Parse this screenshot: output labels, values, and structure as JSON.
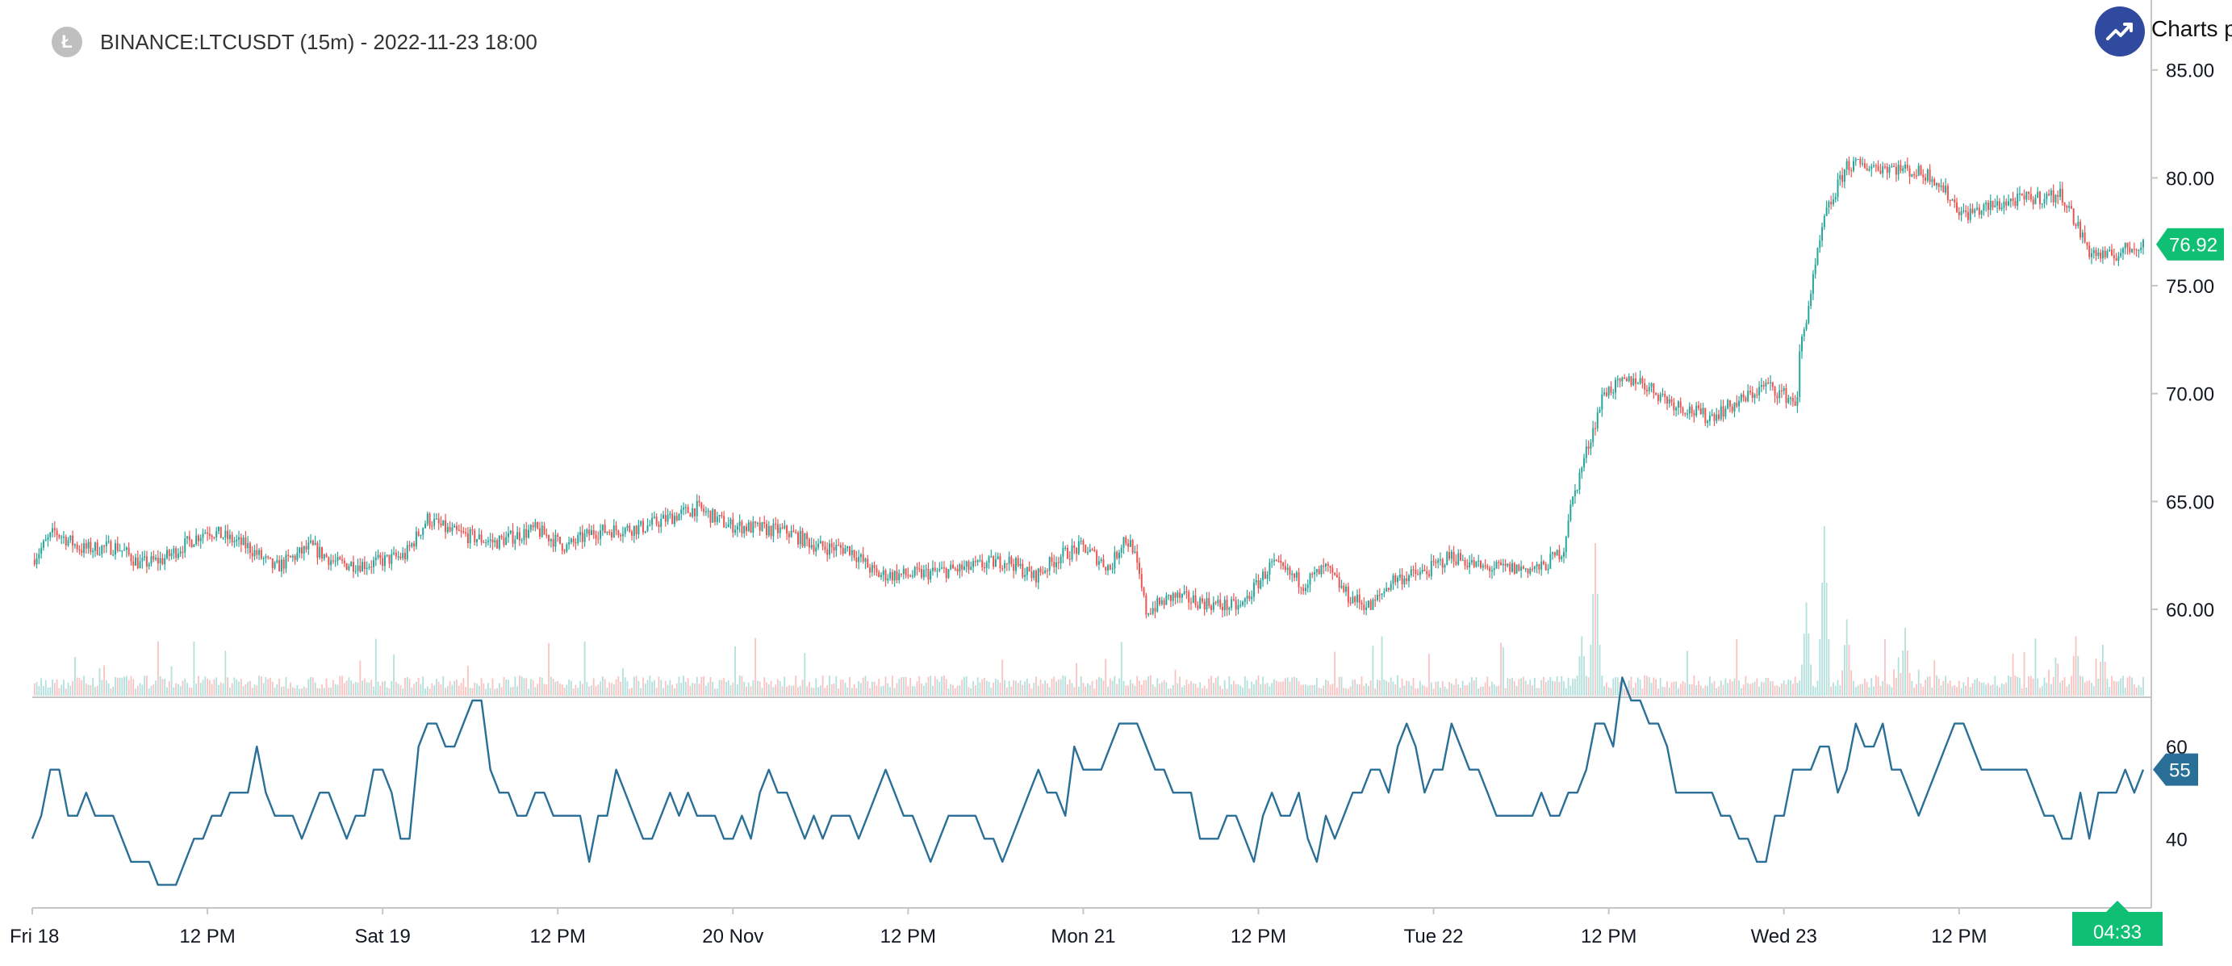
{
  "legend": {
    "symbol": "BINANCE:LTCUSDT (15m) - 2022-11-23 18:00",
    "coin_icon": "litecoin-icon"
  },
  "logo": {
    "text": "Charts p",
    "icon": "trend-up-icon"
  },
  "colors": {
    "up": "#26a69a",
    "up_badge": "#0fbf73",
    "down": "#ef5350",
    "oscillator": "#2a6f97",
    "axis": "#787b86",
    "divider": "#c5c5c5"
  },
  "chart_data": [
    {
      "type": "candlestick",
      "title": "BINANCE:LTCUSDT (15m) - 2022-11-23 18:00",
      "x_ticks": [
        "Fri 18",
        "12 PM",
        "Sat 19",
        "12 PM",
        "20 Nov",
        "12 PM",
        "Mon 21",
        "12 PM",
        "Tue 22",
        "12 PM",
        "Wed 23",
        "12 PM"
      ],
      "y_ticks": [
        "85.00",
        "80.00",
        "75.00",
        "70.00",
        "65.00",
        "60.00"
      ],
      "ylim": [
        56.0,
        86.0
      ],
      "last_price": "76.92",
      "time_to_close": "04:33",
      "close_path": [
        [
          0,
          62.3
        ],
        [
          10,
          63.6
        ],
        [
          22,
          62.8
        ],
        [
          38,
          62.9
        ],
        [
          48,
          62.1
        ],
        [
          58,
          62.3
        ],
        [
          78,
          63.7
        ],
        [
          96,
          62.9
        ],
        [
          108,
          61.9
        ],
        [
          124,
          62.9
        ],
        [
          136,
          62.1
        ],
        [
          150,
          62.1
        ],
        [
          166,
          62.5
        ],
        [
          176,
          64.2
        ],
        [
          186,
          63.6
        ],
        [
          206,
          63.1
        ],
        [
          224,
          63.7
        ],
        [
          238,
          62.9
        ],
        [
          250,
          63.6
        ],
        [
          272,
          63.8
        ],
        [
          296,
          64.7
        ],
        [
          310,
          63.9
        ],
        [
          336,
          63.6
        ],
        [
          350,
          62.9
        ],
        [
          364,
          62.8
        ],
        [
          376,
          61.6
        ],
        [
          392,
          61.6
        ],
        [
          416,
          61.9
        ],
        [
          434,
          62.3
        ],
        [
          446,
          61.5
        ],
        [
          458,
          62.5
        ],
        [
          468,
          62.9
        ],
        [
          480,
          61.9
        ],
        [
          486,
          63.3
        ],
        [
          490,
          62.9
        ],
        [
          496,
          59.9
        ],
        [
          508,
          60.6
        ],
        [
          528,
          60.2
        ],
        [
          538,
          60.1
        ],
        [
          552,
          62.1
        ],
        [
          566,
          61.2
        ],
        [
          576,
          61.9
        ],
        [
          586,
          60.6
        ],
        [
          596,
          60.1
        ],
        [
          606,
          61.4
        ],
        [
          620,
          61.7
        ],
        [
          632,
          62.5
        ],
        [
          646,
          61.9
        ],
        [
          672,
          61.9
        ],
        [
          682,
          62.8
        ],
        [
          684,
          64.3
        ],
        [
          690,
          66.6
        ],
        [
          700,
          70.1
        ],
        [
          714,
          70.7
        ],
        [
          730,
          69.6
        ],
        [
          746,
          68.9
        ],
        [
          760,
          69.6
        ],
        [
          772,
          70.4
        ],
        [
          786,
          69.6
        ],
        [
          786,
          71.3
        ],
        [
          798,
          78.1
        ],
        [
          808,
          80.6
        ],
        [
          828,
          80.5
        ],
        [
          846,
          80.1
        ],
        [
          860,
          78.3
        ],
        [
          880,
          78.9
        ],
        [
          894,
          79.1
        ],
        [
          904,
          79.2
        ],
        [
          916,
          76.6
        ],
        [
          924,
          76.3
        ],
        [
          938,
          76.92
        ]
      ],
      "volume_spikes": [
        [
          690,
          0.35
        ],
        [
          696,
          0.9
        ],
        [
          790,
          0.55
        ],
        [
          798,
          1.0
        ],
        [
          808,
          0.45
        ],
        [
          834,
          0.4
        ],
        [
          910,
          0.35
        ],
        [
          922,
          0.3
        ]
      ],
      "time_steps": 940
    },
    {
      "type": "line",
      "y_ticks": [
        "60",
        "40"
      ],
      "ylim": [
        25,
        70
      ],
      "last_value": "55",
      "series_path": [
        [
          0,
          40
        ],
        [
          5,
          45
        ],
        [
          11,
          60
        ],
        [
          17,
          40
        ],
        [
          23,
          45
        ],
        [
          38,
          45
        ],
        [
          45,
          35
        ],
        [
          50,
          35
        ],
        [
          55,
          30
        ],
        [
          60,
          30
        ],
        [
          72,
          35
        ],
        [
          80,
          45
        ],
        [
          88,
          50
        ],
        [
          95,
          50
        ],
        [
          100,
          55
        ],
        [
          110,
          45
        ],
        [
          120,
          45
        ],
        [
          130,
          50
        ],
        [
          140,
          40
        ],
        [
          148,
          50
        ],
        [
          156,
          55
        ],
        [
          165,
          40
        ],
        [
          172,
          55
        ],
        [
          180,
          65
        ],
        [
          184,
          60
        ],
        [
          190,
          65
        ],
        [
          195,
          70
        ],
        [
          205,
          55
        ],
        [
          215,
          45
        ],
        [
          225,
          50
        ],
        [
          235,
          45
        ],
        [
          245,
          40
        ],
        [
          255,
          45
        ],
        [
          262,
          55
        ],
        [
          268,
          45
        ],
        [
          275,
          40
        ],
        [
          285,
          45
        ],
        [
          292,
          50
        ],
        [
          298,
          45
        ],
        [
          310,
          40
        ],
        [
          320,
          45
        ],
        [
          328,
          55
        ],
        [
          336,
          45
        ],
        [
          342,
          45
        ],
        [
          352,
          40
        ],
        [
          360,
          45
        ],
        [
          368,
          40
        ],
        [
          380,
          55
        ],
        [
          390,
          45
        ],
        [
          400,
          40
        ],
        [
          412,
          45
        ],
        [
          420,
          45
        ],
        [
          426,
          40
        ],
        [
          436,
          40
        ],
        [
          446,
          55
        ],
        [
          456,
          50
        ],
        [
          466,
          55
        ],
        [
          476,
          55
        ],
        [
          482,
          65
        ],
        [
          492,
          65
        ],
        [
          502,
          55
        ],
        [
          510,
          50
        ],
        [
          518,
          40
        ],
        [
          526,
          40
        ],
        [
          534,
          45
        ],
        [
          544,
          40
        ],
        [
          552,
          45
        ],
        [
          560,
          45
        ],
        [
          568,
          40
        ],
        [
          578,
          40
        ],
        [
          590,
          50
        ],
        [
          598,
          55
        ],
        [
          606,
          55
        ],
        [
          612,
          65
        ],
        [
          620,
          50
        ],
        [
          628,
          55
        ],
        [
          636,
          60
        ],
        [
          642,
          55
        ],
        [
          650,
          45
        ],
        [
          660,
          45
        ],
        [
          668,
          45
        ],
        [
          676,
          45
        ],
        [
          686,
          50
        ],
        [
          694,
          55
        ],
        [
          702,
          65
        ],
        [
          714,
          70
        ],
        [
          722,
          65
        ],
        [
          730,
          55
        ],
        [
          738,
          50
        ],
        [
          746,
          50
        ],
        [
          756,
          40
        ],
        [
          766,
          40
        ],
        [
          772,
          40
        ],
        [
          780,
          50
        ],
        [
          788,
          55
        ],
        [
          796,
          60
        ],
        [
          804,
          55
        ],
        [
          814,
          60
        ],
        [
          822,
          60
        ],
        [
          830,
          55
        ],
        [
          838,
          50
        ],
        [
          848,
          55
        ],
        [
          858,
          70
        ],
        [
          866,
          55
        ],
        [
          874,
          50
        ],
        [
          880,
          55
        ],
        [
          890,
          50
        ],
        [
          898,
          45
        ],
        [
          906,
          40
        ],
        [
          914,
          45
        ],
        [
          920,
          50
        ],
        [
          928,
          50
        ],
        [
          934,
          55
        ],
        [
          940,
          55
        ]
      ]
    }
  ]
}
